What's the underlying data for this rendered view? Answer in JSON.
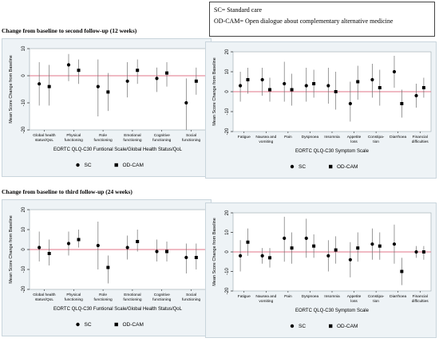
{
  "legend_box": {
    "sc_def": "SC= Standard care",
    "odcam_def": "OD-CAM= Open dialogue about complementary alternative medicine"
  },
  "sections": {
    "top_title": "Change from baseline to second follow-up (12 weeks)",
    "bottom_title": "Change from baseline to third follow-up (24 weeks)"
  },
  "colors": {
    "panel_bg": "#eef3f6",
    "zero_line": "#e0748a",
    "marker": "#000000"
  },
  "chart_data": [
    {
      "type": "scatter",
      "followup": "12 weeks",
      "xlabel": "EORTC QLQ-C30 Funtional Scale/Global Health Status/QoL",
      "ylabel": "Mean Score Change from Baseline",
      "ylim": [
        -20,
        10
      ],
      "yticks": [
        -20,
        -10,
        0,
        10
      ],
      "categories": [
        "Global health status/QoL",
        "Physical functioning",
        "Role functioning",
        "Emotional functioning",
        "Cognitive functioning",
        "Social functioning"
      ],
      "category_lines": [
        [
          "Global health",
          "status/QoL"
        ],
        [
          "Physical",
          "functioning"
        ],
        [
          "Role",
          "functioning"
        ],
        [
          "Emotional",
          "functioning"
        ],
        [
          "Cognitive",
          "functioning"
        ],
        [
          "Social",
          "functioning"
        ]
      ],
      "series": [
        {
          "name": "SC",
          "marker": "circle",
          "values": [
            -3,
            4,
            -4,
            -2,
            -1,
            -10
          ],
          "ci_low": [
            -11,
            -2,
            -15,
            -8,
            -6,
            -20
          ],
          "ci_high": [
            5,
            8,
            6,
            5,
            3,
            -1
          ]
        },
        {
          "name": "OD-CAM",
          "marker": "square",
          "values": [
            -4,
            2,
            -6,
            2,
            1,
            -2
          ],
          "ci_low": [
            -11,
            -3,
            -13,
            -3,
            -4,
            -7
          ],
          "ci_high": [
            4,
            6,
            1,
            6,
            5,
            3
          ]
        }
      ],
      "legend": [
        "SC",
        "OD-CAM"
      ]
    },
    {
      "type": "scatter",
      "followup": "12 weeks",
      "xlabel": "EORTC QLQ-C30 Symptom Scale",
      "ylabel": "Mean Score Change from Baseline",
      "ylim": [
        -20,
        20
      ],
      "yticks": [
        -20,
        -10,
        0,
        10,
        20
      ],
      "categories": [
        "Fatigue",
        "Nausea and vomiting",
        "Pain",
        "Dyspnoea",
        "Insomnia",
        "Appetite loss",
        "Constipation",
        "Diarrhoea",
        "Financial difficulties"
      ],
      "category_lines": [
        [
          "Fatigue"
        ],
        [
          "Nausea and",
          "vomiting"
        ],
        [
          "Pain"
        ],
        [
          "Dyspnoea"
        ],
        [
          "Insomnia"
        ],
        [
          "Appetite",
          "loss"
        ],
        [
          "Constipa-",
          "tion"
        ],
        [
          "Diarrhoea"
        ],
        [
          "Financial",
          "difficulties"
        ]
      ],
      "series": [
        {
          "name": "SC",
          "marker": "circle",
          "values": [
            3,
            6,
            4,
            3,
            3,
            -6,
            6,
            10,
            -2
          ],
          "ci_low": [
            -5,
            -2,
            -5,
            -5,
            -6,
            -15,
            -3,
            2,
            -8
          ],
          "ci_high": [
            10,
            12,
            15,
            12,
            12,
            5,
            14,
            18,
            4
          ]
        },
        {
          "name": "OD-CAM",
          "marker": "square",
          "values": [
            6,
            1,
            1,
            4,
            0,
            5,
            2,
            -6,
            2
          ],
          "ci_low": [
            -1,
            -5,
            -7,
            -3,
            -9,
            -4,
            -7,
            -13,
            -3
          ],
          "ci_high": [
            12,
            7,
            9,
            11,
            10,
            13,
            11,
            1,
            7
          ]
        }
      ],
      "legend": [
        "SC",
        "OD-CAM"
      ]
    },
    {
      "type": "scatter",
      "followup": "24 weeks",
      "xlabel": "EORTC QLQ-C30 Funtional Scale/Global Health Status/QoL",
      "ylabel": "Mean Score Change from Baseline",
      "ylim": [
        -20,
        20
      ],
      "yticks": [
        -20,
        -10,
        0,
        10,
        20
      ],
      "categories": [
        "Global health status/QoL",
        "Physical functioning",
        "Role functioning",
        "Emotional functioning",
        "Cognitive functioning",
        "Social functioning"
      ],
      "category_lines": [
        [
          "Global health",
          "status/QoL"
        ],
        [
          "Physical",
          "functioning"
        ],
        [
          "Role",
          "functioning"
        ],
        [
          "Emotional",
          "functioning"
        ],
        [
          "Cognitive",
          "functioning"
        ],
        [
          "Social",
          "functioning"
        ]
      ],
      "series": [
        {
          "name": "SC",
          "marker": "circle",
          "values": [
            1,
            3,
            2,
            1,
            -1,
            -4
          ],
          "ci_low": [
            -6,
            -3,
            -10,
            -5,
            -6,
            -12
          ],
          "ci_high": [
            9,
            9,
            14,
            7,
            5,
            3
          ]
        },
        {
          "name": "OD-CAM",
          "marker": "square",
          "values": [
            -2,
            5,
            -9,
            4,
            -1,
            -4
          ],
          "ci_low": [
            -8,
            1,
            -17,
            -1,
            -6,
            -10
          ],
          "ci_high": [
            5,
            10,
            -3,
            10,
            4,
            3
          ]
        }
      ],
      "legend": [
        "SC",
        "OD-CAM"
      ]
    },
    {
      "type": "scatter",
      "followup": "24 weeks",
      "xlabel": "EORTC QLQ-C30 Symptom Scale",
      "ylabel": "Mean Score Change from Baseline",
      "ylim": [
        -20,
        20
      ],
      "yticks": [
        -20,
        -10,
        0,
        10,
        20
      ],
      "categories": [
        "Fatigue",
        "Nausea and vomiting",
        "Pain",
        "Dyspnoea",
        "Insomnia",
        "Appetite loss",
        "Constipation",
        "Diarrhoea",
        "Financial difficulties"
      ],
      "category_lines": [
        [
          "Fatigue"
        ],
        [
          "Nausea and",
          "vomiting"
        ],
        [
          "Pain"
        ],
        [
          "Dyspnoea"
        ],
        [
          "Insomnia"
        ],
        [
          "Appetite",
          "loss"
        ],
        [
          "Constipa-",
          "tion"
        ],
        [
          "Diarrhoea"
        ],
        [
          "Financial",
          "difficulties"
        ]
      ],
      "series": [
        {
          "name": "SC",
          "marker": "circle",
          "values": [
            -2,
            -2,
            7,
            7,
            -2,
            -4,
            4,
            4,
            0
          ],
          "ci_low": [
            -10,
            -6,
            -5,
            -3,
            -10,
            -13,
            -4,
            -6,
            -3
          ],
          "ci_high": [
            6,
            2,
            18,
            17,
            6,
            5,
            12,
            14,
            3
          ]
        },
        {
          "name": "OD-CAM",
          "marker": "square",
          "values": [
            5,
            -3,
            2,
            3,
            1,
            2,
            3,
            -10,
            0
          ],
          "ci_low": [
            -2,
            -8,
            -6,
            -3,
            -6,
            -5,
            -4,
            -17,
            -4
          ],
          "ci_high": [
            12,
            2,
            10,
            9,
            8,
            10,
            10,
            -3,
            3
          ]
        }
      ],
      "legend": [
        "SC",
        "OD-CAM"
      ]
    }
  ]
}
